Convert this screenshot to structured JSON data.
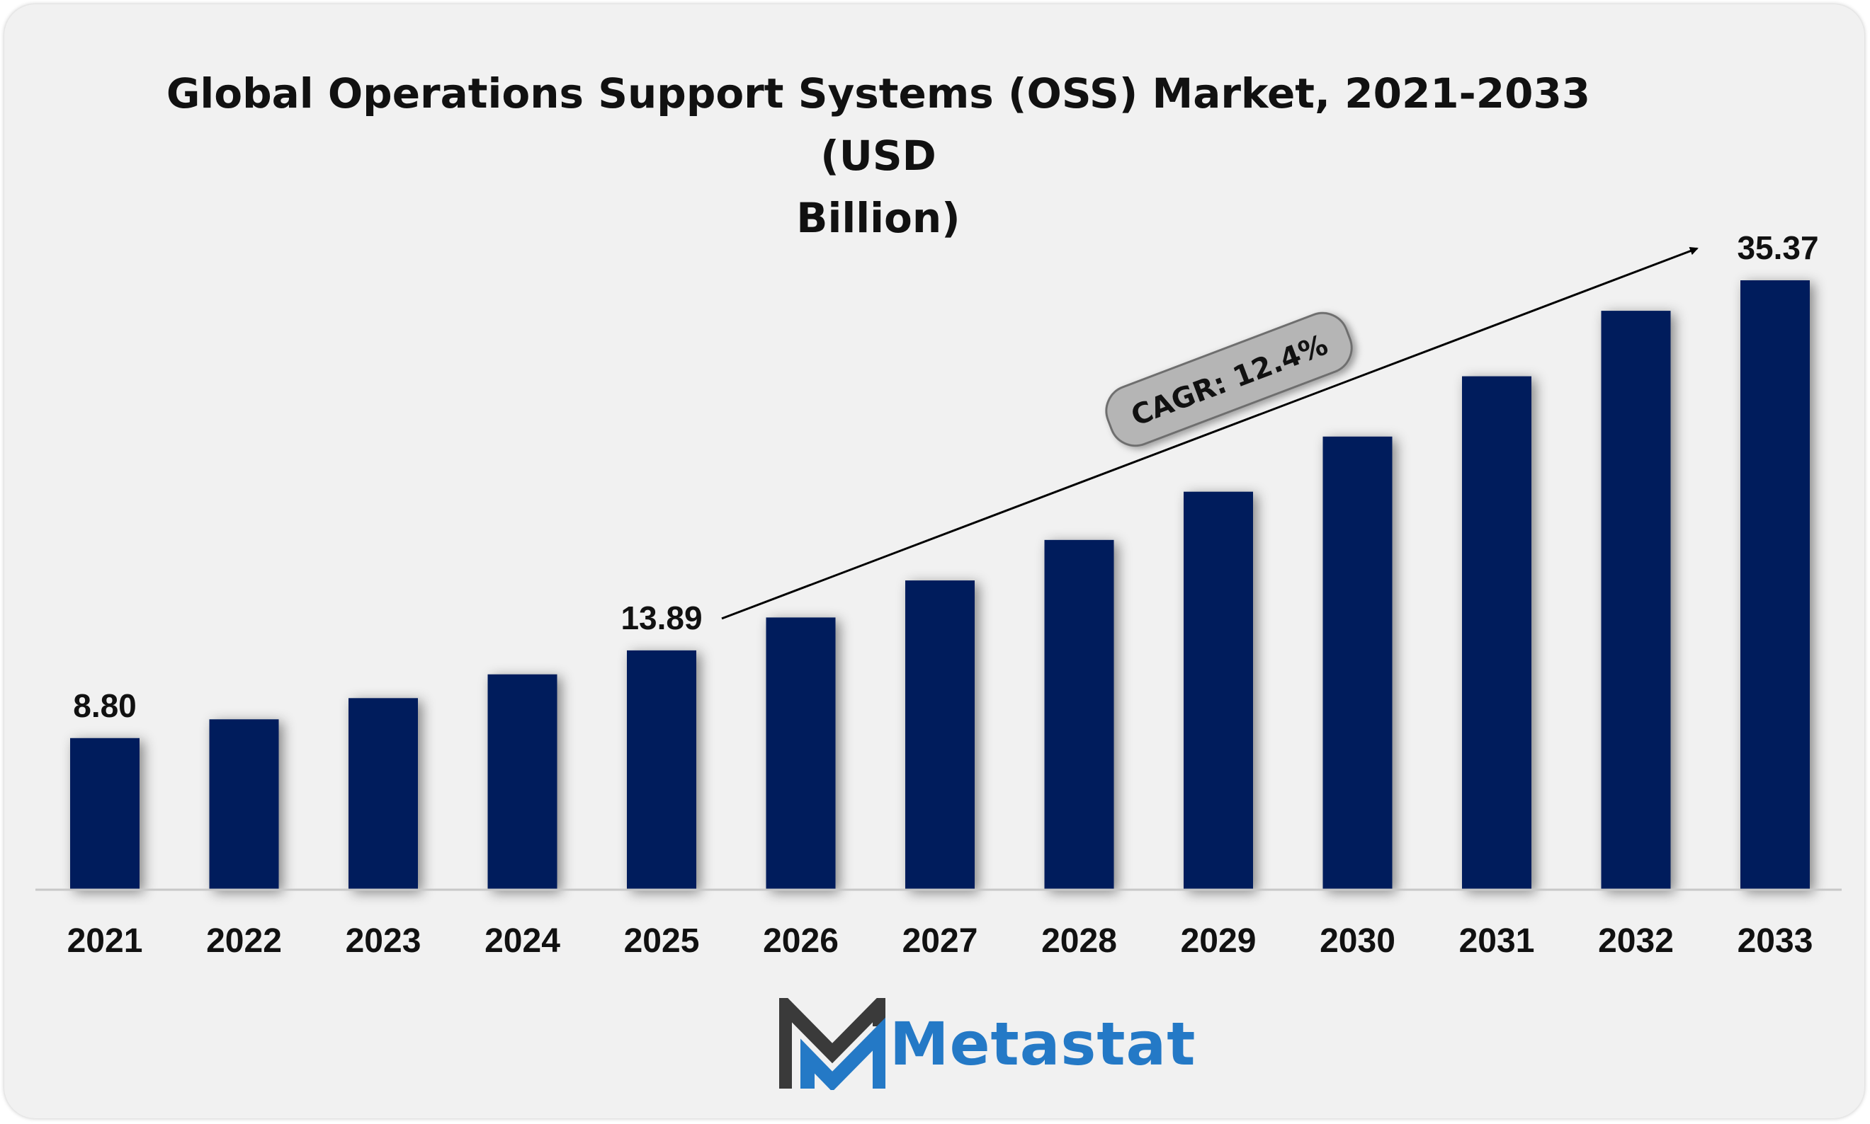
{
  "chart_data": {
    "type": "bar",
    "title_line1": "Global Operations Support Systems (OSS) Market, 2021-2033 (USD",
    "title_line2": "Billion)",
    "categories": [
      "2021",
      "2022",
      "2023",
      "2024",
      "2025",
      "2026",
      "2027",
      "2028",
      "2029",
      "2030",
      "2031",
      "2032",
      "2033"
    ],
    "values": [
      8.8,
      9.89,
      11.12,
      12.5,
      13.89,
      15.8,
      17.95,
      20.3,
      23.1,
      26.3,
      29.8,
      33.6,
      35.37
    ],
    "labels": [
      "8.80",
      "",
      "",
      "",
      "13.89",
      "",
      "",
      "",
      "",
      "",
      "",
      "",
      "35.37"
    ],
    "ylim": [
      0,
      35.37
    ],
    "bar_color": "#001f5c",
    "annotation": {
      "text": "CAGR: 12.4%",
      "from_category": "2025",
      "to_category": "2033"
    }
  },
  "logo": {
    "name": "Metastat",
    "text_color": "#2479c6",
    "mark_dark": "#3a3a3a",
    "mark_blue": "#2479c6"
  }
}
